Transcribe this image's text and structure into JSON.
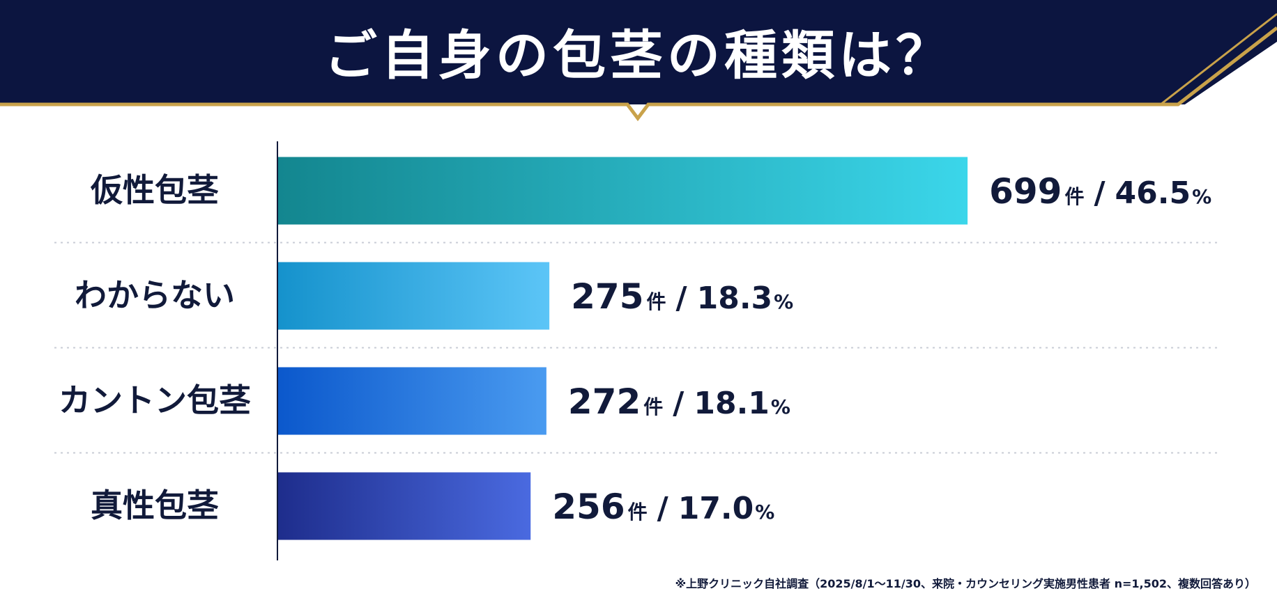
{
  "header": {
    "title": "ご自身の包茎の種類は？"
  },
  "colors": {
    "navy": "#0c1540",
    "gold": "#c9a24a",
    "text": "#111a3a",
    "bar_gradients": [
      [
        "#13868f",
        "#3bd6ea"
      ],
      [
        "#1592cc",
        "#5cc5f7"
      ],
      [
        "#0b58cc",
        "#4a9bf0"
      ],
      [
        "#1e2d8c",
        "#4a6ae0"
      ]
    ]
  },
  "chart_data": {
    "type": "bar",
    "orientation": "horizontal",
    "categories": [
      "仮性包茎",
      "わからない",
      "カントン包茎",
      "真性包茎"
    ],
    "values": [
      699,
      275,
      272,
      256
    ],
    "percent_labels": [
      "46.5%",
      "18.3%",
      "18.1%",
      "17.0%"
    ],
    "unit": "件",
    "separator": "/",
    "xlim": [
      0,
      800
    ],
    "grid": false
  },
  "footnote": "※上野クリニック自社調査（2025/8/1〜11/30、来院・カウンセリング実施男性患者 n=1,502、複数回答あり）"
}
